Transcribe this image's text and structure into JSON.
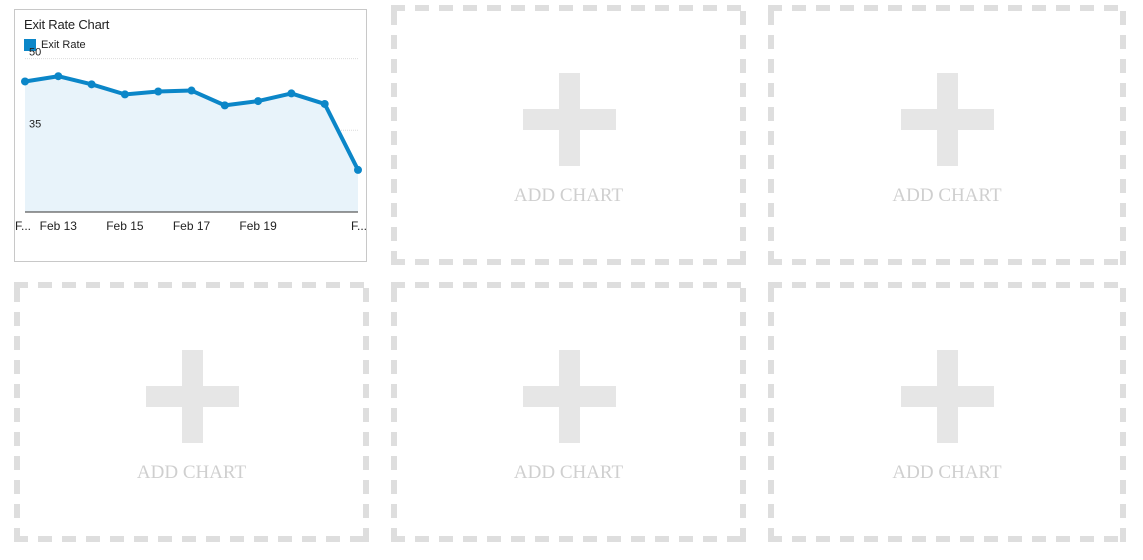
{
  "chart_panel": {
    "title": "Exit Rate Chart",
    "legend_label": "Exit Rate",
    "accent_color": "#0b86c8",
    "fill_color": "#e8f3fa"
  },
  "chart_data": {
    "type": "area",
    "title": "Exit Rate Chart",
    "xlabel": "",
    "ylabel": "",
    "x_tick_labels": [
      "F...",
      "Feb 13",
      "Feb 15",
      "Feb 17",
      "Feb 19",
      "F..."
    ],
    "y_tick_labels": [
      "50",
      "35"
    ],
    "y_ticks": [
      50,
      35
    ],
    "ylim": [
      20,
      52
    ],
    "grid": true,
    "legend": "top-left",
    "series": [
      {
        "name": "Exit Rate",
        "x": [
          "Feb 12",
          "Feb 13",
          "Feb 14",
          "Feb 15",
          "Feb 16",
          "Feb 17",
          "Feb 18",
          "Feb 19",
          "Feb 20",
          "Feb 21",
          "Feb 22"
        ],
        "values": [
          47.3,
          48.4,
          46.7,
          44.6,
          45.2,
          45.4,
          42.3,
          43.2,
          44.8,
          42.6,
          28.8
        ]
      }
    ]
  },
  "placeholders": [
    {
      "label": "ADD CHART"
    },
    {
      "label": "ADD CHART"
    },
    {
      "label": "ADD CHART"
    },
    {
      "label": "ADD CHART"
    },
    {
      "label": "ADD CHART"
    }
  ]
}
